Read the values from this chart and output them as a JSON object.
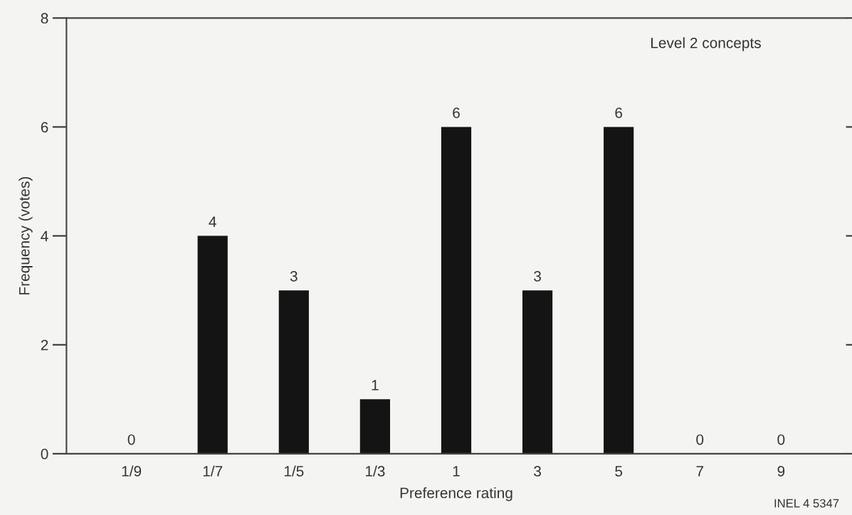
{
  "chart_data": {
    "type": "bar",
    "categories": [
      "1/9",
      "1/7",
      "1/5",
      "1/3",
      "1",
      "3",
      "5",
      "7",
      "9"
    ],
    "values": [
      0,
      4,
      3,
      1,
      6,
      3,
      6,
      0,
      0
    ],
    "color": "#141414",
    "xlabel": "Preference rating",
    "ylabel": "Frequency (votes)",
    "ylim": [
      0,
      8
    ],
    "yticks": [
      0,
      2,
      4,
      6,
      8
    ],
    "data_labels": true,
    "grid": false,
    "legend": false,
    "annotations": [
      "Level 2 concepts",
      "INEL 4 5347"
    ]
  }
}
